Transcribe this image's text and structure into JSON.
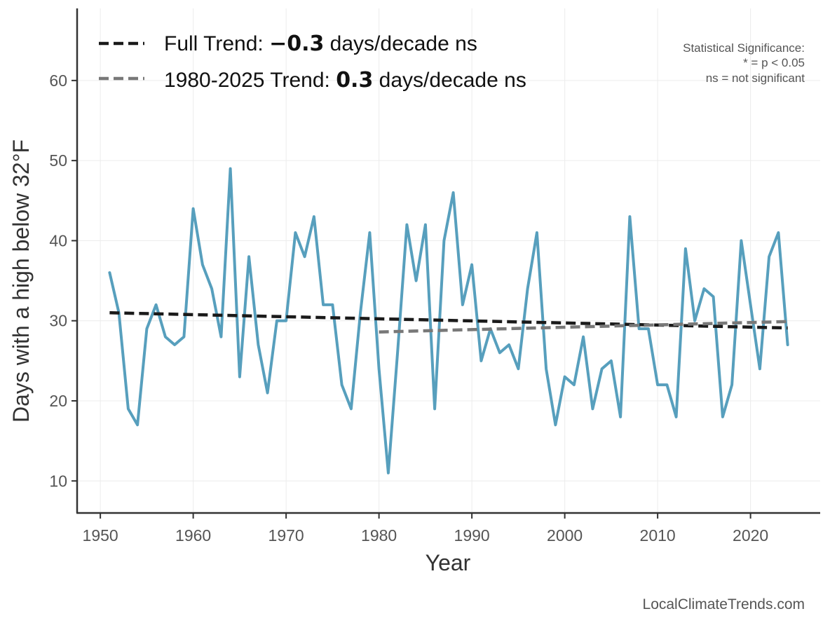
{
  "chart_data": {
    "type": "line",
    "title": "",
    "xlabel": "Year",
    "ylabel": "Days with a high below 32°F",
    "xlim": [
      1947.5,
      2027.5
    ],
    "ylim": [
      6,
      69
    ],
    "x_ticks": [
      1950,
      1960,
      1970,
      1980,
      1990,
      2000,
      2010,
      2020
    ],
    "y_ticks": [
      10,
      20,
      30,
      40,
      50,
      60
    ],
    "x_tick_labels": [
      "1950",
      "1960",
      "1970",
      "1980",
      "1990",
      "2000",
      "2010",
      "2020"
    ],
    "y_tick_labels": [
      "10",
      "20",
      "30",
      "40",
      "50",
      "60"
    ],
    "grid": true,
    "series": [
      {
        "name": "Days with a high below 32°F",
        "color": "#579fbd",
        "x": [
          1951,
          1952,
          1953,
          1954,
          1955,
          1956,
          1957,
          1958,
          1959,
          1960,
          1961,
          1962,
          1963,
          1964,
          1965,
          1966,
          1967,
          1968,
          1969,
          1970,
          1971,
          1972,
          1973,
          1974,
          1975,
          1976,
          1977,
          1978,
          1979,
          1980,
          1981,
          1982,
          1983,
          1984,
          1985,
          1986,
          1987,
          1988,
          1989,
          1990,
          1991,
          1992,
          1993,
          1994,
          1995,
          1996,
          1997,
          1998,
          1999,
          2000,
          2001,
          2002,
          2003,
          2004,
          2005,
          2006,
          2007,
          2008,
          2009,
          2010,
          2011,
          2012,
          2013,
          2014,
          2015,
          2016,
          2017,
          2018,
          2019,
          2020,
          2021,
          2022,
          2023,
          2024
        ],
        "values": [
          36,
          31,
          19,
          17,
          29,
          32,
          28,
          27,
          28,
          44,
          37,
          34,
          28,
          49,
          23,
          38,
          27,
          21,
          30,
          30,
          41,
          38,
          43,
          32,
          32,
          22,
          19,
          31,
          41,
          24,
          11,
          26,
          42,
          35,
          42,
          19,
          40,
          46,
          32,
          37,
          25,
          29,
          26,
          27,
          24,
          34,
          41,
          24,
          17,
          23,
          22,
          28,
          19,
          24,
          25,
          18,
          43,
          29,
          29,
          22,
          22,
          18,
          39,
          30,
          34,
          33,
          18,
          22,
          40,
          32,
          24,
          38,
          41,
          27
        ]
      }
    ],
    "trends": [
      {
        "name": "Full Trend",
        "label_prefix": "Full Trend: ",
        "label_value": "−0.3",
        "label_suffix": " days/decade ns",
        "color": "#1a1a1a",
        "x_start": 1951,
        "x_end": 2024,
        "y_start": 31.0,
        "y_end": 29.1
      },
      {
        "name": "1980-2025 Trend",
        "label_prefix": "1980-2025 Trend: ",
        "label_value": "0.3",
        "label_suffix": " days/decade ns",
        "color": "#787878",
        "x_start": 1980,
        "x_end": 2024,
        "y_start": 28.6,
        "y_end": 29.9
      }
    ],
    "legend_position": "top-left",
    "annotations": [
      "Statistical Significance:",
      "* = p < 0.05",
      "ns = not significant"
    ]
  },
  "source": "LocalClimateTrends.com"
}
